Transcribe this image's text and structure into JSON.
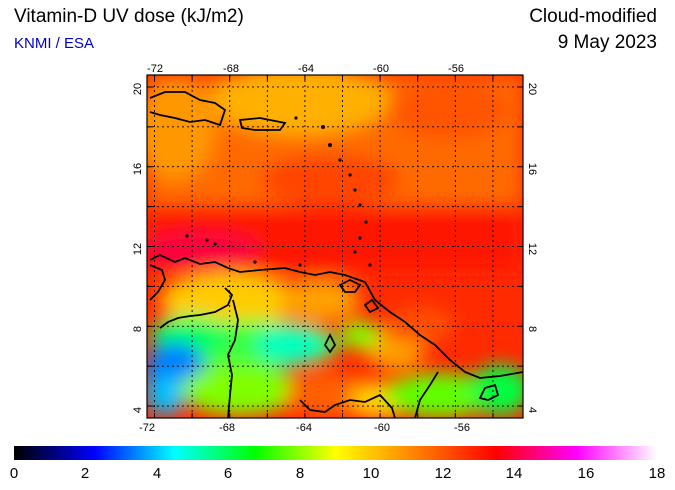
{
  "header": {
    "title": "Vitamin-D UV dose (kJ/m2)",
    "source": "KNMI / ESA",
    "product": "Cloud-modified",
    "date": "9 May 2023"
  },
  "map": {
    "lon_ticks": [
      "-72",
      "-68",
      "-64",
      "-60",
      "-56"
    ],
    "lat_ticks": [
      "20",
      "16",
      "12",
      "8",
      "4"
    ],
    "lon_range": [
      -72.4,
      -52.4
    ],
    "lat_range": [
      3.4,
      20.6
    ]
  },
  "colorbar": {
    "ticks": [
      "0",
      "2",
      "4",
      "6",
      "8",
      "10",
      "12",
      "14",
      "16",
      "18"
    ],
    "range": [
      0,
      18
    ],
    "colors": [
      "#000000",
      "#0000ff",
      "#00ffff",
      "#00ff00",
      "#ffff00",
      "#ff8000",
      "#ff0000",
      "#ff00ff",
      "#ffffff"
    ]
  }
}
